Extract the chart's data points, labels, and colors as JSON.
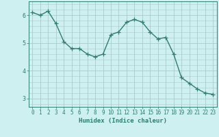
{
  "x": [
    0,
    1,
    2,
    3,
    4,
    5,
    6,
    7,
    8,
    9,
    10,
    11,
    12,
    13,
    14,
    15,
    16,
    17,
    18,
    19,
    20,
    21,
    22,
    23
  ],
  "y": [
    6.1,
    6.0,
    6.15,
    5.7,
    5.05,
    4.8,
    4.8,
    4.6,
    4.5,
    4.6,
    5.3,
    5.4,
    5.75,
    5.85,
    5.75,
    5.4,
    5.15,
    5.2,
    4.6,
    3.75,
    3.55,
    3.35,
    3.2,
    3.15
  ],
  "line_color": "#2e7d6e",
  "marker": "+",
  "marker_size": 4,
  "bg_color": "#cff0f0",
  "grid_color": "#a8cccc",
  "xlabel": "Humidex (Indice chaleur)",
  "xlim": [
    -0.5,
    23.5
  ],
  "ylim": [
    2.7,
    6.5
  ],
  "yticks": [
    3,
    4,
    5,
    6
  ],
  "xticks": [
    0,
    1,
    2,
    3,
    4,
    5,
    6,
    7,
    8,
    9,
    10,
    11,
    12,
    13,
    14,
    15,
    16,
    17,
    18,
    19,
    20,
    21,
    22,
    23
  ],
  "tick_color": "#2e7d6e",
  "axis_color": "#2e7d6e",
  "line_width": 1.0,
  "xlabel_fontsize": 6.5,
  "tick_fontsize": 5.5
}
